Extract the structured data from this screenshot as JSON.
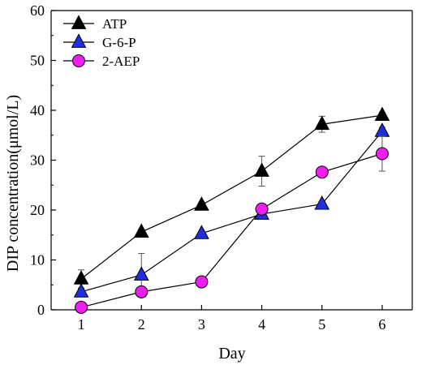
{
  "chart_data": {
    "type": "line",
    "title": "",
    "xlabel": "Day",
    "ylabel": "DIP concentration(μmol/L)",
    "x": [
      1,
      2,
      3,
      4,
      5,
      6
    ],
    "xlim": [
      0.5,
      6.5
    ],
    "ylim": [
      0,
      60
    ],
    "x_ticks": [
      1,
      2,
      3,
      4,
      5,
      6
    ],
    "y_ticks": [
      0,
      10,
      20,
      30,
      40,
      50,
      60
    ],
    "grid": false,
    "legend_position": "top-left",
    "series": [
      {
        "name": "ATP",
        "marker": "triangle",
        "color": "#000000",
        "values": [
          6.2,
          15.6,
          21.0,
          27.8,
          37.2,
          39.0
        ],
        "errors": [
          1.8,
          0.6,
          0.6,
          3.0,
          1.6,
          0.6
        ]
      },
      {
        "name": "G-6-P",
        "marker": "triangle",
        "color": "#1f2fe0",
        "values": [
          3.6,
          7.0,
          15.3,
          19.2,
          21.2,
          35.8
        ],
        "errors": [
          0.6,
          4.3,
          0.5,
          0.6,
          0.5,
          0.8
        ]
      },
      {
        "name": "2-AEP",
        "marker": "circle",
        "color": "#ee1fee",
        "values": [
          0.5,
          3.6,
          5.6,
          20.2,
          27.6,
          31.3
        ],
        "errors": [
          0.4,
          0.6,
          0.5,
          0.8,
          0.6,
          3.5
        ]
      }
    ]
  }
}
